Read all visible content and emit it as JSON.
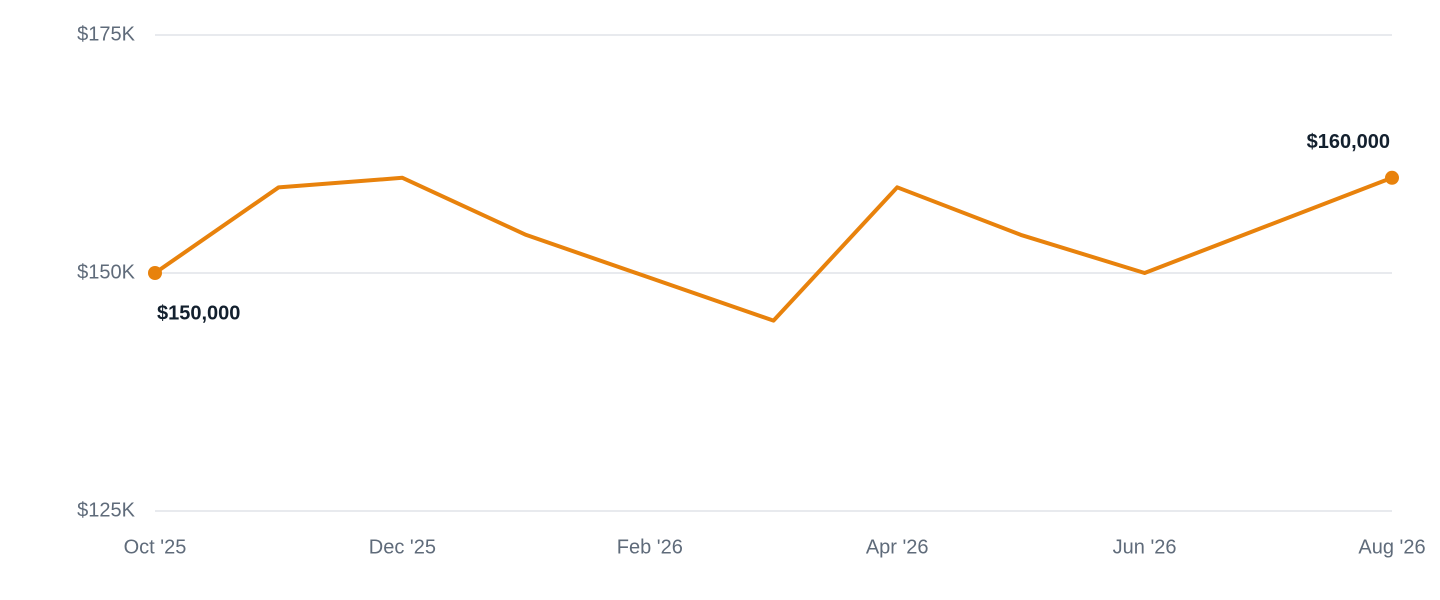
{
  "chart_data": {
    "type": "line",
    "categories": [
      "Oct '25",
      null,
      "Dec '25",
      null,
      "Feb '26",
      null,
      "Apr '26",
      null,
      "Jun '26",
      null,
      "Aug '26"
    ],
    "series": [
      {
        "color": "#e8820c",
        "values": [
          150000,
          159000,
          160000,
          154000,
          149500,
          145000,
          159000,
          154000,
          150000,
          155000,
          160000
        ],
        "value_labels": [
          "$150,000",
          null,
          null,
          null,
          null,
          null,
          null,
          null,
          null,
          null,
          "$160,000"
        ]
      }
    ],
    "ylim": [
      125000,
      175000
    ],
    "yticks": [
      {
        "value": 125000,
        "label": "$125K"
      },
      {
        "value": 150000,
        "label": "$150K"
      },
      {
        "value": 175000,
        "label": "$175K"
      }
    ],
    "grid": true
  }
}
